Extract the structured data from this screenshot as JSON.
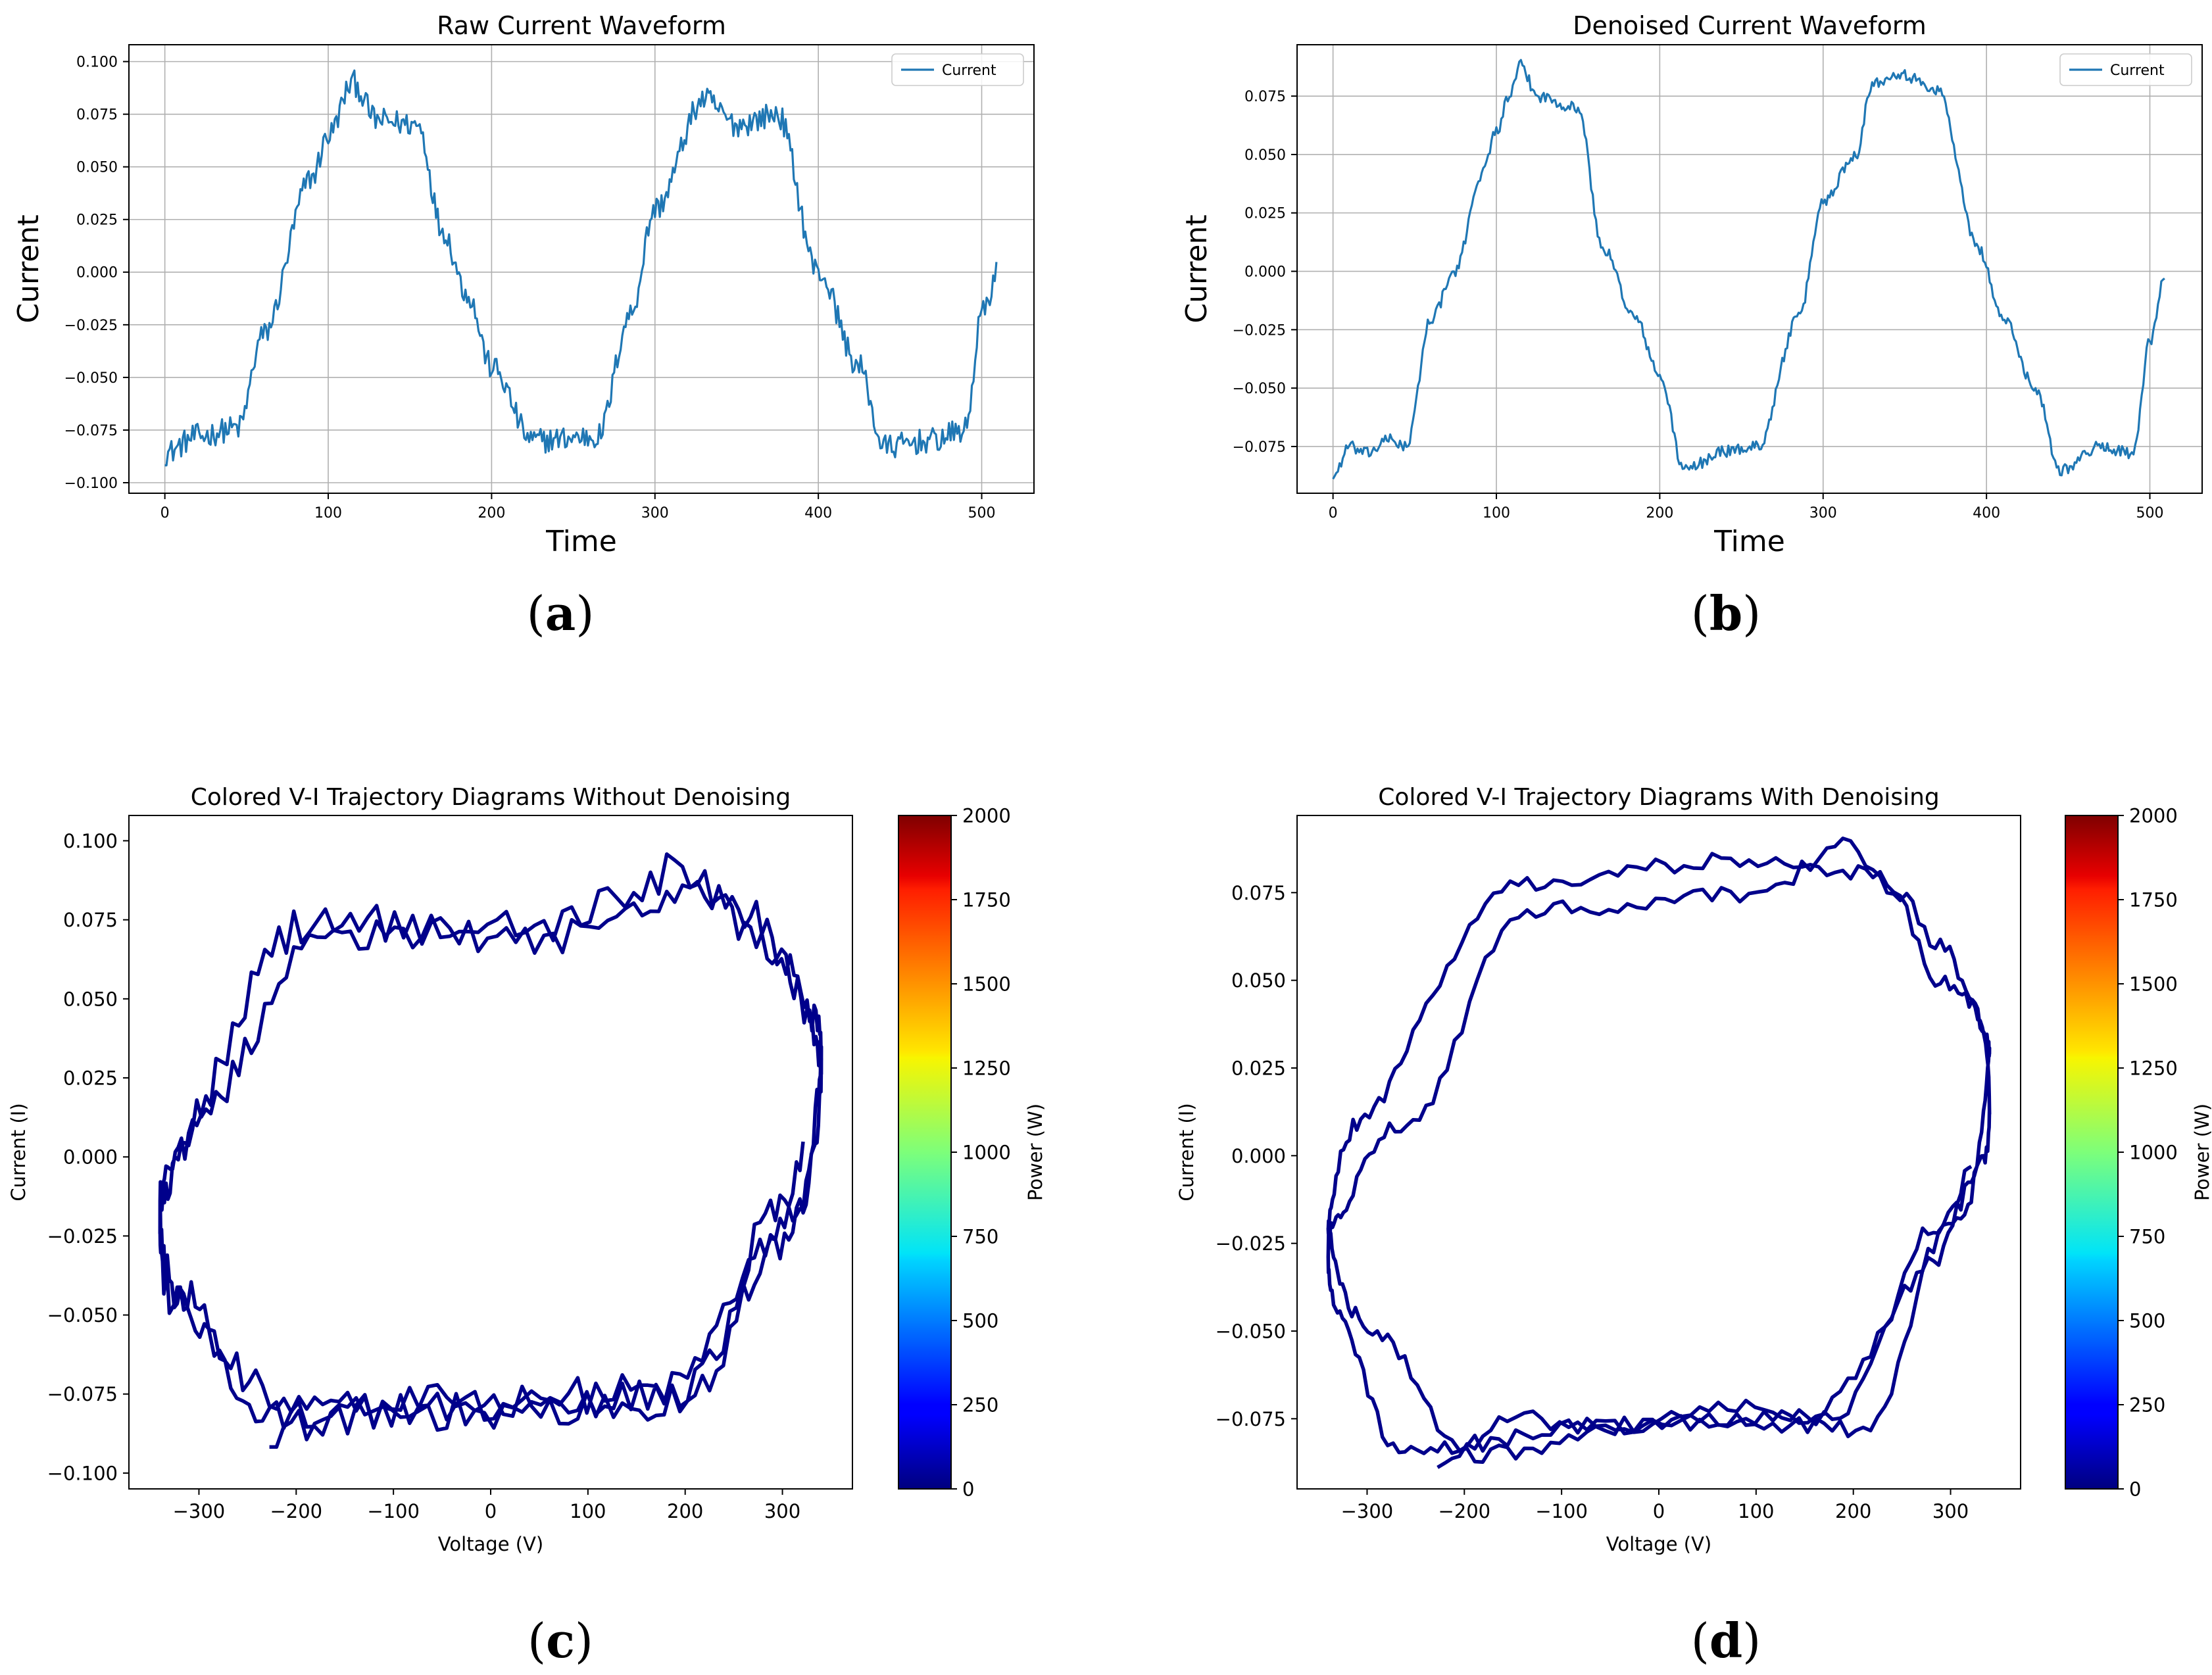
{
  "figure": {
    "captions": {
      "a": "a",
      "b": "b",
      "c": "c",
      "d": "d"
    },
    "colors": {
      "line": "#1f77b4",
      "trajectory": "#00008b",
      "grid": "#b0b0b0",
      "axis": "#000000"
    },
    "colorbar_colormap": "jet"
  },
  "chart_data": [
    {
      "id": "a",
      "type": "line",
      "title": "Raw Current Waveform",
      "xlabel": "Time",
      "ylabel": "Current",
      "xlim": [
        -22,
        532
      ],
      "ylim": [
        -0.105,
        0.108
      ],
      "xticks": [
        0,
        100,
        200,
        300,
        400,
        500
      ],
      "yticks": [
        -0.1,
        -0.075,
        -0.05,
        -0.025,
        0.0,
        0.025,
        0.05,
        0.075,
        0.1
      ],
      "ytick_labels": [
        "−0.100",
        "−0.075",
        "−0.050",
        "−0.025",
        "0.000",
        "0.025",
        "0.050",
        "0.075",
        "0.100"
      ],
      "xtick_labels": [
        "0",
        "100",
        "200",
        "300",
        "400",
        "500"
      ],
      "grid": true,
      "legend": {
        "label": "Current",
        "position": "top-right"
      },
      "series": [
        {
          "name": "Current",
          "n_points": 510,
          "noise": 0.006,
          "x_key": [
            0,
            20,
            45,
            60,
            90,
            100,
            115,
            130,
            155,
            170,
            185,
            200,
            225,
            265,
            285,
            300,
            330,
            350,
            375,
            400,
            425,
            440,
            470,
            490,
            500,
            510
          ],
          "y_key": [
            -0.086,
            -0.078,
            -0.074,
            -0.03,
            0.045,
            0.065,
            0.09,
            0.072,
            0.07,
            0.02,
            -0.01,
            -0.045,
            -0.08,
            -0.078,
            -0.02,
            0.03,
            0.082,
            0.07,
            0.075,
            0.0,
            -0.045,
            -0.083,
            -0.08,
            -0.075,
            -0.02,
            0.0
          ]
        }
      ]
    },
    {
      "id": "b",
      "type": "line",
      "title": "Denoised Current Waveform",
      "xlabel": "Time",
      "ylabel": "Current",
      "xlim": [
        -22,
        532
      ],
      "ylim": [
        -0.095,
        0.097
      ],
      "xticks": [
        0,
        100,
        200,
        300,
        400,
        500
      ],
      "yticks": [
        -0.075,
        -0.05,
        -0.025,
        0.0,
        0.025,
        0.05,
        0.075
      ],
      "ytick_labels": [
        "−0.075",
        "−0.050",
        "−0.025",
        "0.000",
        "0.025",
        "0.050",
        "0.075"
      ],
      "xtick_labels": [
        "0",
        "100",
        "200",
        "300",
        "400",
        "500"
      ],
      "grid": true,
      "legend": {
        "label": "Current",
        "position": "top-right"
      },
      "series": [
        {
          "name": "Current",
          "n_points": 510,
          "noise": 0.0025,
          "x_key": [
            0,
            10,
            20,
            35,
            45,
            60,
            75,
            90,
            100,
            108,
            115,
            125,
            150,
            165,
            185,
            200,
            215,
            240,
            260,
            285,
            300,
            320,
            330,
            345,
            370,
            395,
            410,
            430,
            445,
            470,
            490,
            500,
            510
          ],
          "y_key": [
            -0.088,
            -0.075,
            -0.078,
            -0.072,
            -0.075,
            -0.02,
            0.0,
            0.04,
            0.06,
            0.075,
            0.088,
            0.075,
            0.07,
            0.01,
            -0.02,
            -0.045,
            -0.085,
            -0.077,
            -0.075,
            -0.02,
            0.03,
            0.05,
            0.08,
            0.085,
            0.078,
            0.01,
            -0.02,
            -0.05,
            -0.085,
            -0.075,
            -0.078,
            -0.03,
            0.0
          ]
        }
      ]
    },
    {
      "id": "c",
      "type": "line",
      "title": "Colored V-I Trajectory Diagrams Without Denoising",
      "xlabel": "Voltage (V)",
      "ylabel": "Current (I)",
      "xlim": [
        -372,
        372
      ],
      "ylim": [
        -0.105,
        0.108
      ],
      "xticks": [
        -300,
        -200,
        -100,
        0,
        100,
        200,
        300
      ],
      "xtick_labels": [
        "−300",
        "−200",
        "−100",
        "0",
        "100",
        "200",
        "300"
      ],
      "yticks": [
        -0.1,
        -0.075,
        -0.05,
        -0.025,
        0.0,
        0.025,
        0.05,
        0.075,
        0.1
      ],
      "ytick_labels": [
        "−0.100",
        "−0.075",
        "−0.050",
        "−0.025",
        "0.000",
        "0.025",
        "0.050",
        "0.075",
        "0.100"
      ],
      "grid": false,
      "colorbar": {
        "label": "Power (W)",
        "range": [
          0,
          2000
        ],
        "ticks": [
          0,
          250,
          500,
          750,
          1000,
          1250,
          1500,
          1750,
          2000
        ],
        "tick_labels": [
          "0",
          "250",
          "500",
          "750",
          "1000",
          "1250",
          "1500",
          "1750",
          "2000"
        ]
      },
      "series": [
        {
          "name": "V-I trajectory",
          "n_points": 510,
          "noise": 0.006,
          "x_key": [
            0,
            20,
            45,
            60,
            90,
            100,
            115,
            130,
            155,
            170,
            185,
            200,
            225,
            265,
            285,
            300,
            330,
            350,
            375,
            400,
            425,
            440,
            470,
            490,
            500,
            510
          ],
          "y_key": [
            -0.086,
            -0.078,
            -0.074,
            -0.03,
            0.045,
            0.065,
            0.09,
            0.072,
            0.07,
            0.02,
            -0.01,
            -0.045,
            -0.08,
            -0.078,
            -0.02,
            0.03,
            0.082,
            0.07,
            0.075,
            0.0,
            -0.045,
            -0.083,
            -0.08,
            -0.075,
            -0.02,
            0.0
          ],
          "voltage_amplitude": 340,
          "voltage_period": 220,
          "voltage_phase_deg": -42
        }
      ]
    },
    {
      "id": "d",
      "type": "line",
      "title": "Colored V-I Trajectory Diagrams With Denoising",
      "xlabel": "Voltage (V)",
      "ylabel": "Current (I)",
      "xlim": [
        -372,
        372
      ],
      "ylim": [
        -0.095,
        0.097
      ],
      "xticks": [
        -300,
        -200,
        -100,
        0,
        100,
        200,
        300
      ],
      "xtick_labels": [
        "−300",
        "−200",
        "−100",
        "0",
        "100",
        "200",
        "300"
      ],
      "yticks": [
        -0.075,
        -0.05,
        -0.025,
        0.0,
        0.025,
        0.05,
        0.075
      ],
      "ytick_labels": [
        "−0.075",
        "−0.050",
        "−0.025",
        "0.000",
        "0.025",
        "0.050",
        "0.075"
      ],
      "grid": false,
      "colorbar": {
        "label": "Power (W)",
        "range": [
          0,
          2000
        ],
        "ticks": [
          0,
          250,
          500,
          750,
          1000,
          1250,
          1500,
          1750,
          2000
        ],
        "tick_labels": [
          "0",
          "250",
          "500",
          "750",
          "1000",
          "1250",
          "1500",
          "1750",
          "2000"
        ]
      },
      "series": [
        {
          "name": "V-I trajectory",
          "n_points": 510,
          "noise": 0.0025,
          "x_key": [
            0,
            10,
            20,
            35,
            45,
            60,
            75,
            90,
            100,
            108,
            115,
            125,
            150,
            165,
            185,
            200,
            215,
            240,
            260,
            285,
            300,
            320,
            330,
            345,
            370,
            395,
            410,
            430,
            445,
            470,
            490,
            500,
            510
          ],
          "y_key": [
            -0.088,
            -0.075,
            -0.078,
            -0.072,
            -0.075,
            -0.02,
            0.0,
            0.04,
            0.06,
            0.075,
            0.088,
            0.075,
            0.07,
            0.01,
            -0.02,
            -0.045,
            -0.085,
            -0.077,
            -0.075,
            -0.02,
            0.03,
            0.05,
            0.08,
            0.085,
            0.078,
            0.01,
            -0.02,
            -0.05,
            -0.085,
            -0.075,
            -0.078,
            -0.03,
            0.0
          ],
          "voltage_amplitude": 340,
          "voltage_period": 220,
          "voltage_phase_deg": -42
        }
      ]
    }
  ]
}
